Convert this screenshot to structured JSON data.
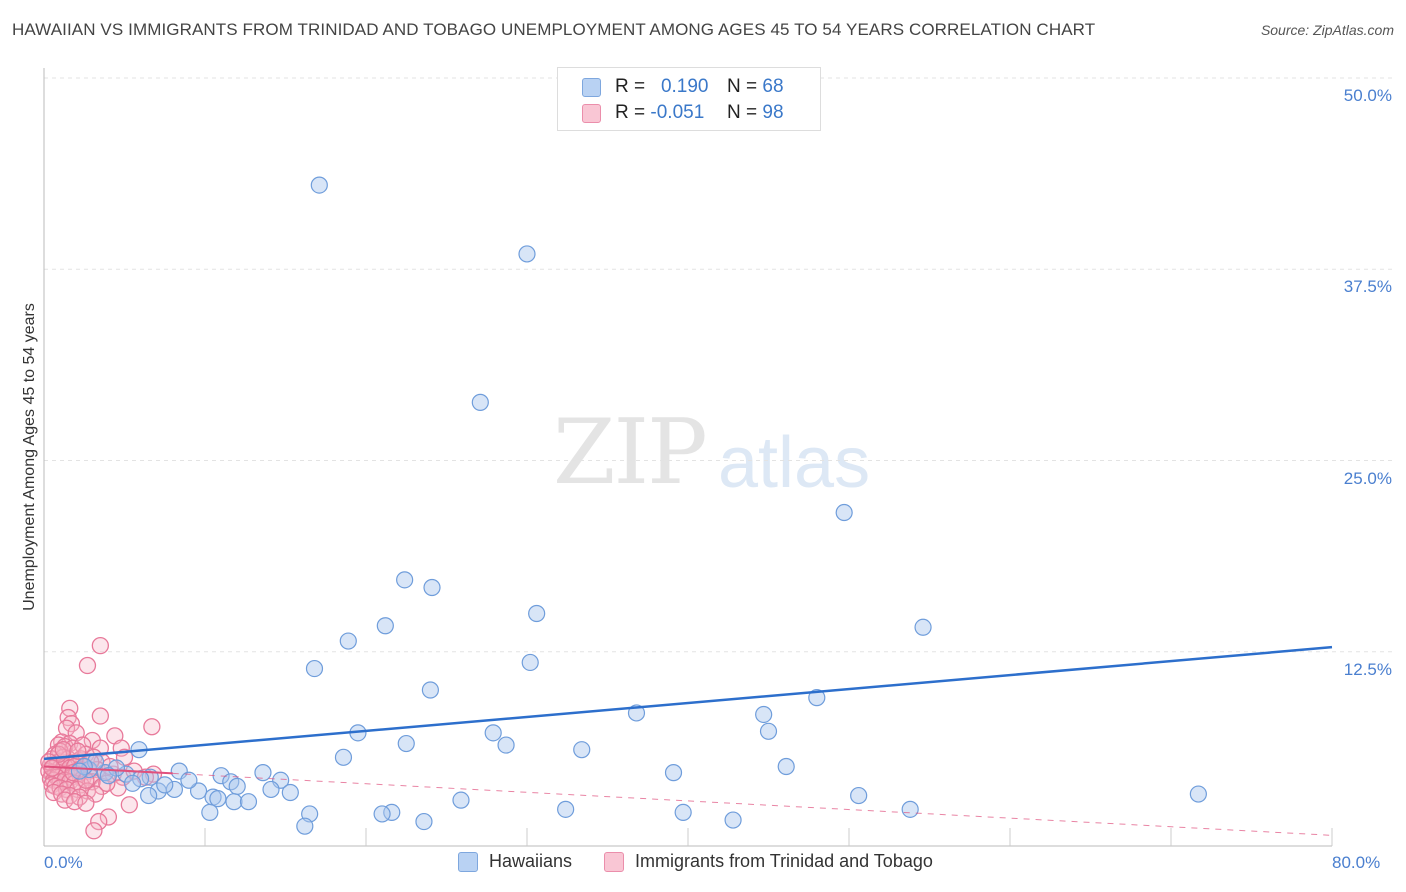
{
  "title": "HAWAIIAN VS IMMIGRANTS FROM TRINIDAD AND TOBAGO UNEMPLOYMENT AMONG AGES 45 TO 54 YEARS CORRELATION CHART",
  "source": "Source: ZipAtlas.com",
  "watermark": {
    "zip": "ZIP",
    "atlas": "atlas"
  },
  "legend_top": {
    "rows": [
      {
        "r_label": "R =",
        "r_value": "0.190",
        "n_label": "N =",
        "n_value": "68"
      },
      {
        "r_label": "R =",
        "r_value": "-0.051",
        "n_label": "N =",
        "n_value": "98"
      }
    ]
  },
  "legend_bottom": {
    "items": [
      "Hawaiians",
      "Immigrants from Trinidad and Tobago"
    ]
  },
  "colors": {
    "blue_fill": "#a8c6ee",
    "blue_stroke": "#6f9ddb",
    "blue_line": "#2d6fcc",
    "pink_fill": "#f6b8c9",
    "pink_stroke": "#e8799a",
    "pink_line": "#e0507d",
    "grid": "#e3e3e3",
    "tick_text": "#4a7fcf"
  },
  "chart_data": {
    "type": "scatter",
    "title": "HAWAIIAN VS IMMIGRANTS FROM TRINIDAD AND TOBAGO UNEMPLOYMENT AMONG AGES 45 TO 54 YEARS CORRELATION CHART",
    "xlabel": "",
    "ylabel": "Unemployment Among Ages 45 to 54 years",
    "xlim": [
      0,
      80
    ],
    "ylim": [
      0,
      50
    ],
    "x_tick_labels": [
      "0.0%",
      "80.0%"
    ],
    "y_ticks": [
      12.5,
      25.0,
      37.5,
      50.0
    ],
    "y_tick_labels": [
      "12.5%",
      "25.0%",
      "37.5%",
      "50.0%"
    ],
    "series": [
      {
        "name": "Hawaiians",
        "color": "blue",
        "r": 0.19,
        "n": 68,
        "trend": {
          "x": [
            0,
            80
          ],
          "y": [
            5.5,
            12.8
          ],
          "style": "solid",
          "extent": [
            0,
            80
          ]
        },
        "points": [
          [
            17.1,
            43.0
          ],
          [
            30.0,
            38.5
          ],
          [
            27.1,
            28.8
          ],
          [
            49.7,
            21.6
          ],
          [
            22.4,
            17.2
          ],
          [
            24.1,
            16.7
          ],
          [
            30.6,
            15.0
          ],
          [
            21.2,
            14.2
          ],
          [
            54.6,
            14.1
          ],
          [
            18.9,
            13.2
          ],
          [
            16.8,
            11.4
          ],
          [
            30.2,
            11.8
          ],
          [
            24.0,
            10.0
          ],
          [
            48.0,
            9.5
          ],
          [
            36.8,
            8.5
          ],
          [
            44.7,
            8.4
          ],
          [
            19.5,
            7.2
          ],
          [
            27.9,
            7.2
          ],
          [
            45.0,
            7.3
          ],
          [
            22.5,
            6.5
          ],
          [
            28.7,
            6.4
          ],
          [
            33.4,
            6.1
          ],
          [
            18.6,
            5.6
          ],
          [
            5.9,
            6.1
          ],
          [
            46.1,
            5.0
          ],
          [
            39.1,
            4.6
          ],
          [
            13.6,
            4.6
          ],
          [
            8.4,
            4.7
          ],
          [
            11.0,
            4.4
          ],
          [
            6.6,
            4.3
          ],
          [
            5.1,
            4.5
          ],
          [
            3.8,
            4.6
          ],
          [
            14.7,
            4.1
          ],
          [
            11.6,
            4.0
          ],
          [
            12.0,
            3.7
          ],
          [
            9.6,
            3.4
          ],
          [
            14.1,
            3.5
          ],
          [
            15.3,
            3.3
          ],
          [
            8.1,
            3.5
          ],
          [
            7.1,
            3.4
          ],
          [
            6.5,
            3.1
          ],
          [
            10.5,
            3.0
          ],
          [
            11.8,
            2.7
          ],
          [
            12.7,
            2.7
          ],
          [
            10.8,
            2.9
          ],
          [
            50.6,
            3.1
          ],
          [
            71.7,
            3.2
          ],
          [
            25.9,
            2.8
          ],
          [
            16.5,
            1.9
          ],
          [
            21.6,
            2.0
          ],
          [
            21.0,
            1.9
          ],
          [
            32.4,
            2.2
          ],
          [
            39.7,
            2.0
          ],
          [
            53.8,
            2.2
          ],
          [
            10.3,
            2.0
          ],
          [
            23.6,
            1.4
          ],
          [
            42.8,
            1.5
          ],
          [
            16.2,
            1.1
          ],
          [
            2.8,
            4.8
          ],
          [
            4.5,
            4.9
          ],
          [
            3.2,
            5.3
          ],
          [
            2.5,
            5.0
          ],
          [
            6.0,
            4.2
          ],
          [
            4.0,
            4.4
          ],
          [
            7.5,
            3.8
          ],
          [
            9.0,
            4.1
          ],
          [
            5.5,
            3.9
          ],
          [
            2.2,
            4.7
          ]
        ]
      },
      {
        "name": "Immigrants from Trinidad and Tobago",
        "color": "pink",
        "r": -0.051,
        "n": 98,
        "trend": {
          "x": [
            0,
            80
          ],
          "y": [
            5.0,
            0.5
          ],
          "style": "solid-then-dashed",
          "solid_until": 8
        },
        "points": [
          [
            3.5,
            12.9
          ],
          [
            2.7,
            11.6
          ],
          [
            1.6,
            8.8
          ],
          [
            1.5,
            8.2
          ],
          [
            1.7,
            7.8
          ],
          [
            1.4,
            7.5
          ],
          [
            2.0,
            7.2
          ],
          [
            3.5,
            8.3
          ],
          [
            6.7,
            7.6
          ],
          [
            4.4,
            7.0
          ],
          [
            3.0,
            6.7
          ],
          [
            1.1,
            6.6
          ],
          [
            1.6,
            6.5
          ],
          [
            0.9,
            6.4
          ],
          [
            1.3,
            6.3
          ],
          [
            1.8,
            6.2
          ],
          [
            2.4,
            6.4
          ],
          [
            3.5,
            6.2
          ],
          [
            4.8,
            6.2
          ],
          [
            5.0,
            5.6
          ],
          [
            1.0,
            6.0
          ],
          [
            0.7,
            5.8
          ],
          [
            0.5,
            5.5
          ],
          [
            0.9,
            5.3
          ],
          [
            1.2,
            5.6
          ],
          [
            1.5,
            5.5
          ],
          [
            1.7,
            5.2
          ],
          [
            2.0,
            5.3
          ],
          [
            2.3,
            5.5
          ],
          [
            2.6,
            5.8
          ],
          [
            3.1,
            5.6
          ],
          [
            3.6,
            5.3
          ],
          [
            0.4,
            5.1
          ],
          [
            0.6,
            5.0
          ],
          [
            0.8,
            5.1
          ],
          [
            1.0,
            4.9
          ],
          [
            1.3,
            5.0
          ],
          [
            1.6,
            4.9
          ],
          [
            1.9,
            5.0
          ],
          [
            2.2,
            4.8
          ],
          [
            2.5,
            5.0
          ],
          [
            2.8,
            4.7
          ],
          [
            3.3,
            4.8
          ],
          [
            3.8,
            4.6
          ],
          [
            4.3,
            4.5
          ],
          [
            4.9,
            4.3
          ],
          [
            6.8,
            4.5
          ],
          [
            0.3,
            4.7
          ],
          [
            0.5,
            4.6
          ],
          [
            0.7,
            4.5
          ],
          [
            0.9,
            4.6
          ],
          [
            1.1,
            4.4
          ],
          [
            1.4,
            4.5
          ],
          [
            1.7,
            4.3
          ],
          [
            2.0,
            4.5
          ],
          [
            2.4,
            4.2
          ],
          [
            2.9,
            4.3
          ],
          [
            0.4,
            4.2
          ],
          [
            0.6,
            4.1
          ],
          [
            0.8,
            4.3
          ],
          [
            1.0,
            4.0
          ],
          [
            1.3,
            4.1
          ],
          [
            1.6,
            4.0
          ],
          [
            1.9,
            3.9
          ],
          [
            2.3,
            3.8
          ],
          [
            3.0,
            4.0
          ],
          [
            3.6,
            3.7
          ],
          [
            0.5,
            3.8
          ],
          [
            0.7,
            3.7
          ],
          [
            1.0,
            3.6
          ],
          [
            1.4,
            3.5
          ],
          [
            2.1,
            3.5
          ],
          [
            2.7,
            3.4
          ],
          [
            4.6,
            3.6
          ],
          [
            0.6,
            3.3
          ],
          [
            1.1,
            3.2
          ],
          [
            1.6,
            3.1
          ],
          [
            2.2,
            3.0
          ],
          [
            3.2,
            3.2
          ],
          [
            1.3,
            2.8
          ],
          [
            1.9,
            2.7
          ],
          [
            2.6,
            2.6
          ],
          [
            5.3,
            2.5
          ],
          [
            4.0,
            1.7
          ],
          [
            3.4,
            1.4
          ],
          [
            3.1,
            0.8
          ],
          [
            0.9,
            5.8
          ],
          [
            1.2,
            6.1
          ],
          [
            2.1,
            6.0
          ],
          [
            2.9,
            5.3
          ],
          [
            4.1,
            5.0
          ],
          [
            5.6,
            4.7
          ],
          [
            6.3,
            4.3
          ],
          [
            0.3,
            5.3
          ],
          [
            0.5,
            4.9
          ],
          [
            1.8,
            4.6
          ],
          [
            2.6,
            4.1
          ],
          [
            3.9,
            3.9
          ]
        ]
      }
    ]
  }
}
